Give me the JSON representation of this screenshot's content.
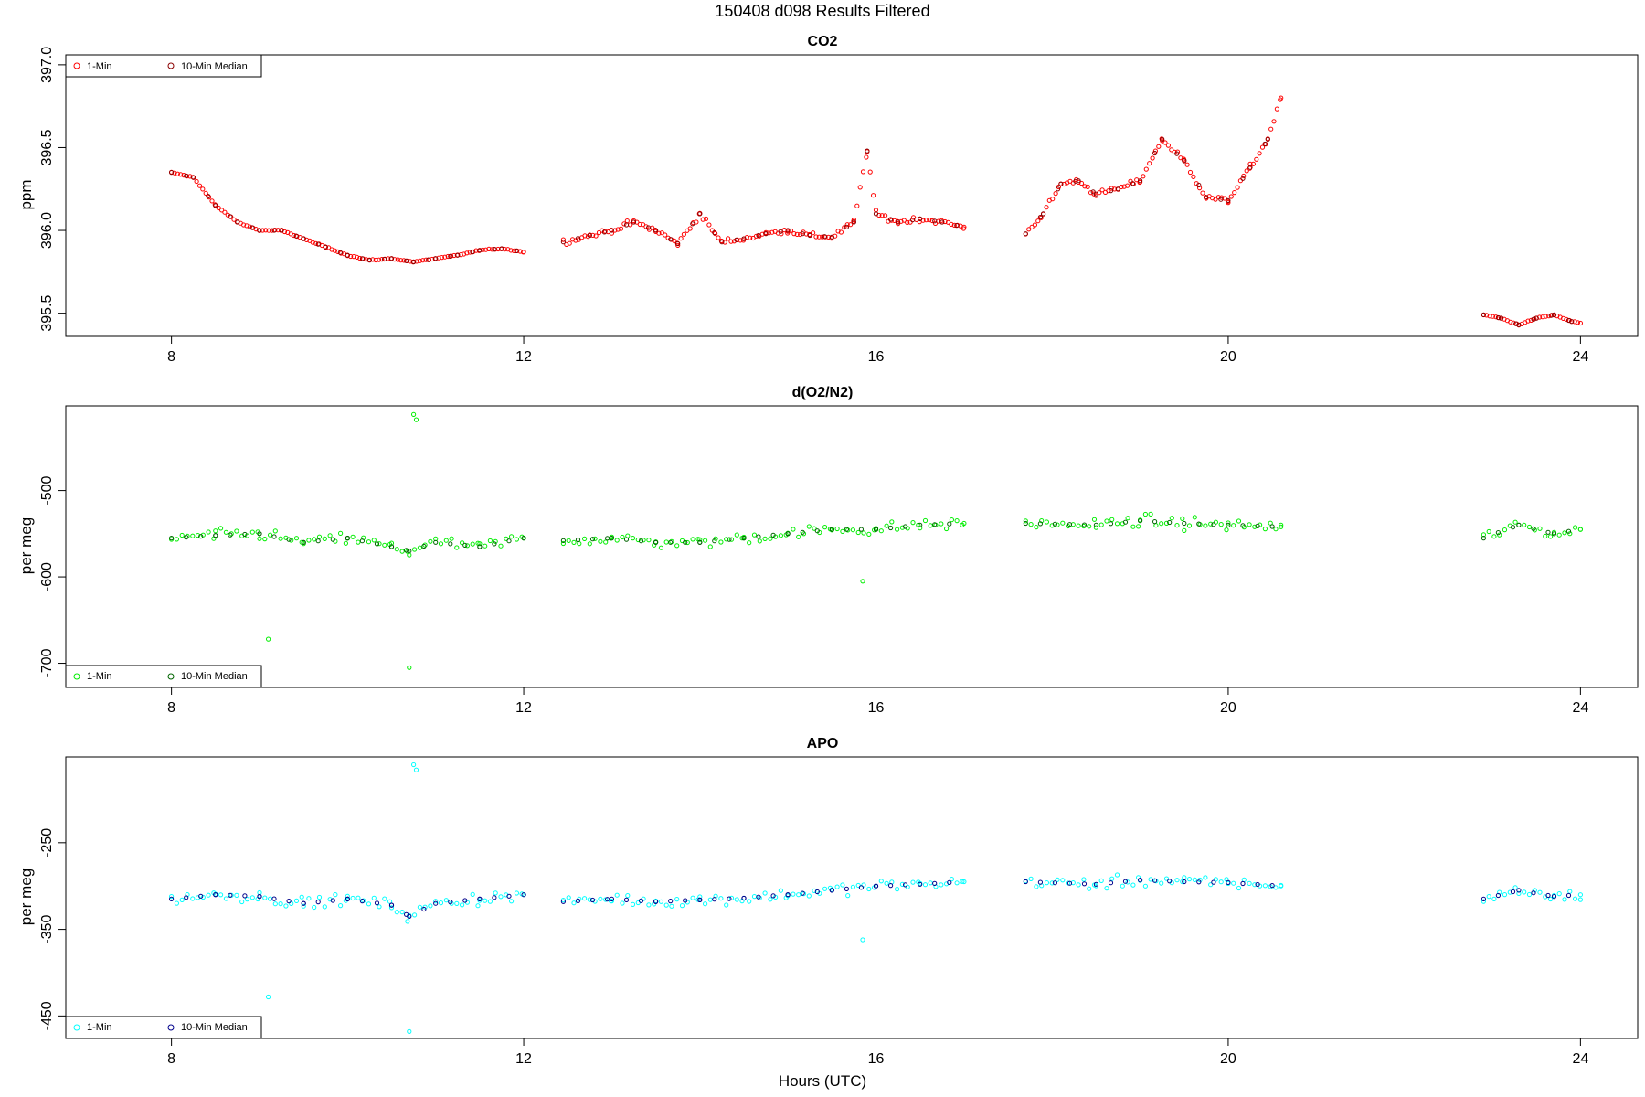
{
  "figure": {
    "title": "150408   d098   Results Filtered",
    "xlabel": "Hours (UTC)"
  },
  "chart_data": [
    {
      "type": "scatter",
      "title": "CO2",
      "ylabel": "ppm",
      "xlim": [
        6.8,
        24.65
      ],
      "ylim": [
        395.36,
        397.06
      ],
      "xticks": [
        8,
        12,
        16,
        20,
        24
      ],
      "yticks": [
        395.5,
        396.0,
        396.5,
        397.0
      ],
      "ytick_labels": [
        "395.5",
        "396.0",
        "396.5",
        "397.0"
      ],
      "grid": false,
      "legend_position": "top-left",
      "legend": [
        "1-Min",
        "10-Min Median"
      ],
      "series": [
        {
          "name": "1-Min",
          "color": "#ff0000",
          "segments": [
            {
              "x": [
                8.0,
                8.25,
                8.5,
                8.75,
                9.0,
                9.25,
                9.5,
                9.75,
                10.0,
                10.25,
                10.5,
                10.75,
                11.0,
                11.25,
                11.5,
                11.75,
                12.0
              ],
              "y": [
                396.35,
                396.32,
                396.15,
                396.05,
                396.0,
                396.0,
                395.95,
                395.9,
                395.85,
                395.82,
                395.83,
                395.81,
                395.83,
                395.85,
                395.88,
                395.89,
                395.87
              ]
            },
            {
              "x": [
                12.45,
                12.75,
                13.0,
                13.25,
                13.5,
                13.75,
                14.0,
                14.25,
                14.5,
                14.75,
                15.0,
                15.25,
                15.5,
                15.75,
                15.9,
                16.0,
                16.25,
                16.5,
                16.75,
                17.0
              ],
              "y": [
                395.93,
                395.97,
                396.0,
                396.05,
                396.0,
                395.92,
                396.1,
                395.93,
                395.95,
                395.98,
                396.0,
                395.97,
                395.96,
                396.05,
                396.48,
                396.1,
                396.05,
                396.07,
                396.05,
                396.02
              ]
            },
            {
              "x": [
                17.7,
                17.9,
                18.1,
                18.3,
                18.5,
                18.75,
                19.0,
                19.25,
                19.5,
                19.75,
                20.0,
                20.25,
                20.45,
                20.6
              ],
              "y": [
                395.98,
                396.1,
                396.28,
                396.3,
                396.22,
                396.25,
                396.3,
                396.55,
                396.42,
                396.2,
                396.18,
                396.38,
                396.55,
                396.8
              ]
            },
            {
              "x": [
                22.9,
                23.1,
                23.3,
                23.5,
                23.7,
                23.9,
                24.0
              ],
              "y": [
                395.49,
                395.47,
                395.43,
                395.47,
                395.49,
                395.45,
                395.44
              ]
            }
          ]
        },
        {
          "name": "10-Min Median",
          "color": "#8b0000",
          "segments": []
        }
      ]
    },
    {
      "type": "scatter",
      "title": "d(O2/N2)",
      "ylabel": "per meg",
      "xlim": [
        6.8,
        24.65
      ],
      "ylim": [
        -728,
        -402
      ],
      "xticks": [
        8,
        12,
        16,
        20,
        24
      ],
      "yticks": [
        -700,
        -600,
        -500
      ],
      "ytick_labels": [
        "-700",
        "-600",
        "-500"
      ],
      "grid": false,
      "legend_position": "bottom-left",
      "legend": [
        "1-Min",
        "10-Min Median"
      ],
      "series": [
        {
          "name": "1-Min",
          "color": "#00ee00",
          "segments": [
            {
              "x": [
                8.0,
                8.5,
                9.0,
                9.5,
                10.0,
                10.5,
                10.7,
                11.0,
                11.5,
                12.0
              ],
              "y": [
                -555,
                -552,
                -550,
                -560,
                -555,
                -565,
                -570,
                -560,
                -565,
                -555
              ]
            },
            {
              "x": [
                12.45,
                13.0,
                13.5,
                14.0,
                14.5,
                15.0,
                15.5,
                16.0,
                16.5,
                17.0
              ],
              "y": [
                -558,
                -555,
                -560,
                -560,
                -555,
                -550,
                -545,
                -545,
                -540,
                -538
              ]
            },
            {
              "x": [
                17.7,
                18.5,
                19.0,
                19.5,
                20.0,
                20.6
              ],
              "y": [
                -538,
                -540,
                -535,
                -538,
                -540,
                -542
              ]
            },
            {
              "x": [
                22.9,
                23.3,
                23.7,
                24.0
              ],
              "y": [
                -555,
                -540,
                -550,
                -545
              ]
            }
          ]
        },
        {
          "name": "10-Min Median",
          "color": "#006400",
          "segments": []
        }
      ],
      "outliers": {
        "x": [
          10.75,
          10.78,
          10.7,
          9.1,
          15.85
        ],
        "y": [
          -412,
          -418,
          -705,
          -672,
          -605
        ]
      }
    },
    {
      "type": "scatter",
      "title": "APO",
      "ylabel": "per meg",
      "xlim": [
        6.8,
        24.65
      ],
      "ylim": [
        -476,
        -151
      ],
      "xticks": [
        8,
        12,
        16,
        20,
        24
      ],
      "yticks": [
        -450,
        -350,
        -250
      ],
      "ytick_labels": [
        "-450",
        "-350",
        "-250"
      ],
      "grid": false,
      "legend_position": "bottom-left",
      "legend": [
        "1-Min",
        "10-Min Median"
      ],
      "series": [
        {
          "name": "1-Min",
          "color": "#00ffff",
          "segments": [
            {
              "x": [
                8.0,
                8.5,
                9.0,
                9.5,
                10.0,
                10.5,
                10.7,
                11.0,
                11.5,
                12.0
              ],
              "y": [
                -315,
                -310,
                -312,
                -320,
                -315,
                -322,
                -335,
                -320,
                -315,
                -310
              ]
            },
            {
              "x": [
                12.45,
                13.0,
                13.5,
                14.0,
                14.5,
                15.0,
                15.5,
                16.0,
                16.5,
                17.0
              ],
              "y": [
                -318,
                -315,
                -318,
                -316,
                -314,
                -310,
                -305,
                -300,
                -298,
                -295
              ]
            },
            {
              "x": [
                17.7,
                18.5,
                19.0,
                19.5,
                20.0,
                20.6
              ],
              "y": [
                -295,
                -298,
                -293,
                -295,
                -296,
                -300
              ]
            },
            {
              "x": [
                22.9,
                23.3,
                23.7,
                24.0
              ],
              "y": [
                -315,
                -305,
                -312,
                -310
              ]
            }
          ]
        },
        {
          "name": "10-Min Median",
          "color": "#00008b",
          "segments": []
        }
      ],
      "outliers": {
        "x": [
          10.75,
          10.78,
          10.7,
          9.1,
          15.85
        ],
        "y": [
          -160,
          -166,
          -468,
          -428,
          -362
        ]
      }
    }
  ]
}
